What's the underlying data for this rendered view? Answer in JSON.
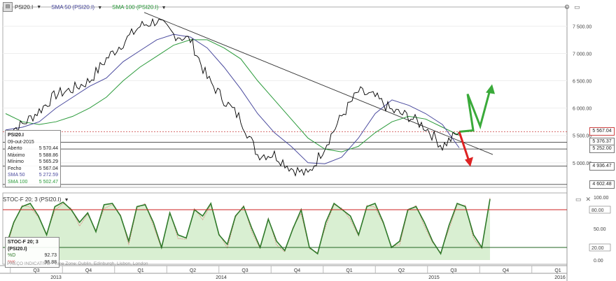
{
  "toolbar": {
    "symbol": "PSI20.I",
    "sma50_label": "SMA 50 (PSI20.I)",
    "sma100_label": "SMA 100 (PSI20.I)"
  },
  "colors": {
    "price": "#000000",
    "sma50": "#4a4a9e",
    "sma100": "#2a9a3a",
    "up_arrow": "#3aaa3a",
    "down_arrow": "#dd2222",
    "stoch_fill": "#d9efd2",
    "stoch_k": "#2f7a2a",
    "stoch_d": "#e06a6a",
    "overbought": "#cc2222",
    "oversold": "#226622",
    "last_price": "#cc4444"
  },
  "info_box": {
    "title": "PSI20.I",
    "date": "09-out-2015",
    "rows": [
      {
        "label": "Aberto",
        "value": "5 570.44"
      },
      {
        "label": "Máximo",
        "value": "5 588.86"
      },
      {
        "label": "Mínimo",
        "value": "5 565.29"
      },
      {
        "label": "Fecho",
        "value": "5 567.04"
      },
      {
        "label": "SMA 50",
        "value": "5 272.59"
      },
      {
        "label": "SMA 100",
        "value": "5 502.47"
      }
    ]
  },
  "price_axis": {
    "ticks": [
      "7 500.00",
      "7 000.00",
      "6 500.00",
      "6 000.00",
      "5 500.00",
      "5 000.00"
    ],
    "tags": [
      {
        "label": "5 567.04",
        "value": 5567.04
      },
      {
        "label": "5 376.37",
        "value": 5376.37
      },
      {
        "label": "5 252.00",
        "value": 5252
      },
      {
        "label": "4 936.47",
        "value": 4936.47
      },
      {
        "label": "4 602.48",
        "value": 4602.48
      }
    ]
  },
  "stoch_panel": {
    "header": "STOC-F 20; 3 (PSI20.I)",
    "title": "STOC-F 20; 3 (PSI20.I)",
    "rows": [
      {
        "label": "%D",
        "value": "92.73"
      },
      {
        "label": "%K",
        "value": "96.88"
      }
    ],
    "ticks": [
      "100.00",
      "80.00",
      "50.00",
      "20.00",
      "0.00"
    ]
  },
  "watermark": "PREÇO INDICATIVO - Time Zone: Dublin, Edinburgh, Lisbon, London",
  "x_axis": {
    "quarters": [
      "Q3",
      "Q4",
      "Q1",
      "Q2",
      "Q3",
      "Q4",
      "Q1",
      "Q2",
      "Q3",
      "Q4",
      "Q1"
    ],
    "years": [
      "2013",
      "2014",
      "2015",
      "2016"
    ]
  },
  "chart_data": {
    "type": "line",
    "x": [
      "2013-07",
      "2013-08",
      "2013-09",
      "2013-10",
      "2013-11",
      "2013-12",
      "2014-01",
      "2014-02",
      "2014-03",
      "2014-04",
      "2014-05",
      "2014-06",
      "2014-07",
      "2014-08",
      "2014-09",
      "2014-10",
      "2014-11",
      "2014-12",
      "2015-01",
      "2015-02",
      "2015-03",
      "2015-04",
      "2015-05",
      "2015-06",
      "2015-07",
      "2015-08",
      "2015-09",
      "2015-10"
    ],
    "series": [
      {
        "name": "PSI20.I",
        "values": [
          5550,
          5700,
          5950,
          6250,
          6350,
          6500,
          6900,
          7200,
          7500,
          7600,
          7350,
          7250,
          6550,
          6150,
          5800,
          5150,
          5150,
          4900,
          4780,
          5300,
          5850,
          6300,
          6200,
          5950,
          5850,
          5650,
          5300,
          5567.04
        ]
      },
      {
        "name": "SMA 50 (PSI20.I)",
        "values": [
          5600,
          5650,
          5750,
          6000,
          6200,
          6400,
          6550,
          6850,
          7050,
          7250,
          7350,
          7300,
          7100,
          6750,
          6350,
          5900,
          5550,
          5300,
          5000,
          4980,
          5100,
          5450,
          5900,
          6150,
          6050,
          5900,
          5700,
          5272.59
        ]
      },
      {
        "name": "SMA 100 (PSI20.I)",
        "values": [
          5900,
          5750,
          5700,
          5750,
          5850,
          6000,
          6200,
          6500,
          6750,
          6950,
          7150,
          7250,
          7250,
          7100,
          6900,
          6500,
          6150,
          5800,
          5450,
          5250,
          5200,
          5300,
          5550,
          5750,
          5850,
          5800,
          5650,
          5502.47
        ]
      }
    ],
    "stochastic": {
      "name": "STOC-F 20; 3",
      "d_last": 92.73,
      "k_last": 96.88,
      "levels": [
        80,
        20
      ],
      "values": [
        20,
        60,
        85,
        90,
        70,
        40,
        85,
        92,
        80,
        60,
        75,
        45,
        88,
        90,
        70,
        30,
        85,
        88,
        60,
        20,
        75,
        40,
        35,
        80,
        70,
        90,
        40,
        25,
        70,
        85,
        50,
        20,
        65,
        30,
        15,
        50,
        80,
        20,
        10,
        60,
        90,
        80,
        70,
        40,
        85,
        90,
        60,
        20,
        30,
        80,
        85,
        60,
        30,
        10,
        55,
        90,
        85,
        40,
        20,
        96.88
      ],
      "ylim": [
        0,
        100
      ]
    },
    "trendline": {
      "from": [
        "2014-03",
        7750
      ],
      "to": [
        "2015-12",
        5150
      ]
    },
    "horizontal_levels": [
      5567.04,
      5376.37,
      5252,
      4936.47,
      4602.48
    ],
    "ylim": [
      4550,
      7850
    ]
  }
}
